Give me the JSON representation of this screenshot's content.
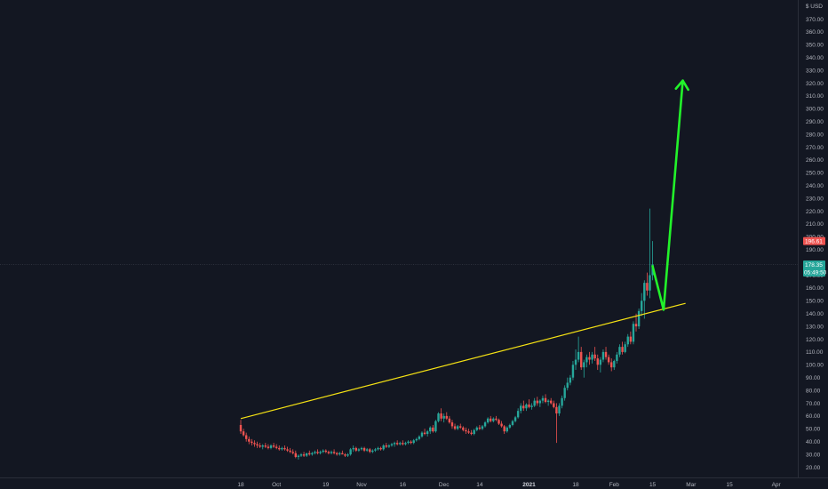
{
  "chart_data": {
    "type": "candlestick",
    "title": "",
    "unit_label": "$ USD",
    "ylim": [
      15,
      385
    ],
    "y_ticks": [
      20,
      30,
      40,
      50,
      60,
      70,
      80,
      90,
      100,
      110,
      120,
      130,
      140,
      150,
      160,
      170,
      180,
      190,
      200,
      210,
      220,
      230,
      240,
      250,
      260,
      270,
      280,
      290,
      300,
      310,
      320,
      330,
      340,
      350,
      360,
      370
    ],
    "y_tick_labels": [
      "20.00",
      "30.00",
      "40.00",
      "50.00",
      "60.00",
      "70.00",
      "80.00",
      "90.00",
      "100.00",
      "110.00",
      "120.00",
      "130.00",
      "140.00",
      "150.00",
      "160.00",
      "170.00",
      "180.00",
      "190.00",
      "200.00",
      "210.00",
      "220.00",
      "230.00",
      "240.00",
      "250.00",
      "260.00",
      "270.00",
      "280.00",
      "290.00",
      "300.00",
      "310.00",
      "320.00",
      "330.00",
      "340.00",
      "350.00",
      "360.00",
      "370.00"
    ],
    "x_start": "2020-09-18",
    "x_end": "2021-04-05",
    "x_ticks": [
      {
        "date": "2020-09-18",
        "label": "18",
        "bold": false
      },
      {
        "date": "2020-10-01",
        "label": "Oct",
        "bold": false
      },
      {
        "date": "2020-10-19",
        "label": "19",
        "bold": false
      },
      {
        "date": "2020-11-01",
        "label": "Nov",
        "bold": false
      },
      {
        "date": "2020-11-16",
        "label": "16",
        "bold": false
      },
      {
        "date": "2020-12-01",
        "label": "Dec",
        "bold": false
      },
      {
        "date": "2020-12-14",
        "label": "14",
        "bold": false
      },
      {
        "date": "2021-01-01",
        "label": "2021",
        "bold": true
      },
      {
        "date": "2021-01-18",
        "label": "18",
        "bold": false
      },
      {
        "date": "2021-02-01",
        "label": "Feb",
        "bold": false
      },
      {
        "date": "2021-02-15",
        "label": "15",
        "bold": false
      },
      {
        "date": "2021-03-01",
        "label": "Mar",
        "bold": false
      },
      {
        "date": "2021-03-15",
        "label": "15",
        "bold": false
      },
      {
        "date": "2021-04-01",
        "label": "Apr",
        "bold": false
      }
    ],
    "last_price": {
      "value": 178.35,
      "label": "178.35",
      "countdown": "05:49:50",
      "color": "#26a69a"
    },
    "high_marker": {
      "value": 196.61,
      "label": "196.61",
      "color": "#ef5350"
    },
    "annotations": [
      {
        "name": "trendline",
        "color": "#f5e214",
        "from": {
          "date": "2020-09-18",
          "value": 58
        },
        "to": {
          "date": "2021-02-27",
          "value": 148
        }
      },
      {
        "name": "projection-arrow",
        "color": "#22f22a",
        "points": [
          {
            "date": "2021-02-15",
            "value": 177
          },
          {
            "date": "2021-02-19",
            "value": 143
          },
          {
            "date": "2021-02-26",
            "value": 322
          }
        ]
      }
    ],
    "candle_colors": {
      "up": "#26a69a",
      "down": "#ef5350"
    },
    "grid": false,
    "legend": "none",
    "candles": [
      [
        "2020-09-18",
        53,
        57,
        46,
        48
      ],
      [
        "2020-09-19",
        48,
        50,
        44,
        45
      ],
      [
        "2020-09-20",
        45,
        47,
        40,
        42
      ],
      [
        "2020-09-21",
        42,
        44,
        38,
        40
      ],
      [
        "2020-09-22",
        40,
        42,
        37,
        39
      ],
      [
        "2020-09-23",
        39,
        41,
        36,
        38
      ],
      [
        "2020-09-24",
        38,
        40,
        35,
        37
      ],
      [
        "2020-09-25",
        37,
        39,
        35,
        36
      ],
      [
        "2020-09-26",
        36,
        38,
        34,
        37
      ],
      [
        "2020-09-27",
        37,
        39,
        35,
        36
      ],
      [
        "2020-09-28",
        36,
        38,
        34,
        35
      ],
      [
        "2020-09-29",
        35,
        38,
        34,
        37
      ],
      [
        "2020-09-30",
        37,
        39,
        35,
        36
      ],
      [
        "2020-10-01",
        36,
        38,
        34,
        35
      ],
      [
        "2020-10-02",
        35,
        37,
        33,
        34
      ],
      [
        "2020-10-03",
        34,
        36,
        33,
        35
      ],
      [
        "2020-10-04",
        35,
        37,
        33,
        34
      ],
      [
        "2020-10-05",
        34,
        36,
        32,
        33
      ],
      [
        "2020-10-06",
        33,
        35,
        31,
        32
      ],
      [
        "2020-10-07",
        32,
        34,
        30,
        31
      ],
      [
        "2020-10-08",
        31,
        33,
        27,
        28
      ],
      [
        "2020-10-09",
        28,
        30,
        26,
        29
      ],
      [
        "2020-10-10",
        29,
        31,
        28,
        30
      ],
      [
        "2020-10-11",
        30,
        32,
        28,
        29
      ],
      [
        "2020-10-12",
        29,
        31,
        28,
        31
      ],
      [
        "2020-10-13",
        31,
        33,
        29,
        30
      ],
      [
        "2020-10-14",
        30,
        32,
        29,
        31
      ],
      [
        "2020-10-15",
        31,
        33,
        30,
        32
      ],
      [
        "2020-10-16",
        32,
        34,
        30,
        31
      ],
      [
        "2020-10-17",
        31,
        33,
        30,
        32
      ],
      [
        "2020-10-18",
        32,
        34,
        31,
        33
      ],
      [
        "2020-10-19",
        33,
        34,
        31,
        32
      ],
      [
        "2020-10-20",
        32,
        33,
        30,
        31
      ],
      [
        "2020-10-21",
        31,
        33,
        30,
        32
      ],
      [
        "2020-10-22",
        32,
        34,
        30,
        31
      ],
      [
        "2020-10-23",
        31,
        32,
        29,
        30
      ],
      [
        "2020-10-24",
        30,
        32,
        29,
        31
      ],
      [
        "2020-10-25",
        31,
        33,
        30,
        30
      ],
      [
        "2020-10-26",
        30,
        31,
        28,
        29
      ],
      [
        "2020-10-27",
        29,
        31,
        28,
        30
      ],
      [
        "2020-10-28",
        30,
        35,
        29,
        34
      ],
      [
        "2020-10-29",
        34,
        37,
        32,
        35
      ],
      [
        "2020-10-30",
        35,
        36,
        32,
        33
      ],
      [
        "2020-10-31",
        33,
        35,
        32,
        34
      ],
      [
        "2020-11-01",
        34,
        36,
        33,
        35
      ],
      [
        "2020-11-02",
        35,
        36,
        32,
        33
      ],
      [
        "2020-11-03",
        33,
        35,
        32,
        34
      ],
      [
        "2020-11-04",
        34,
        35,
        31,
        32
      ],
      [
        "2020-11-05",
        32,
        34,
        31,
        33
      ],
      [
        "2020-11-06",
        33,
        35,
        32,
        34
      ],
      [
        "2020-11-07",
        34,
        36,
        33,
        35
      ],
      [
        "2020-11-08",
        35,
        36,
        33,
        34
      ],
      [
        "2020-11-09",
        34,
        38,
        33,
        37
      ],
      [
        "2020-11-10",
        37,
        39,
        35,
        36
      ],
      [
        "2020-11-11",
        36,
        38,
        35,
        37
      ],
      [
        "2020-11-12",
        37,
        39,
        36,
        38
      ],
      [
        "2020-11-13",
        38,
        40,
        36,
        39
      ],
      [
        "2020-11-14",
        39,
        41,
        37,
        38
      ],
      [
        "2020-11-15",
        38,
        40,
        37,
        39
      ],
      [
        "2020-11-16",
        39,
        41,
        37,
        38
      ],
      [
        "2020-11-17",
        38,
        40,
        37,
        39
      ],
      [
        "2020-11-18",
        39,
        41,
        38,
        40
      ],
      [
        "2020-11-19",
        40,
        41,
        38,
        39
      ],
      [
        "2020-11-20",
        39,
        42,
        38,
        41
      ],
      [
        "2020-11-21",
        41,
        43,
        40,
        42
      ],
      [
        "2020-11-22",
        42,
        45,
        41,
        44
      ],
      [
        "2020-11-23",
        44,
        48,
        43,
        47
      ],
      [
        "2020-11-24",
        47,
        50,
        45,
        46
      ],
      [
        "2020-11-25",
        46,
        49,
        44,
        48
      ],
      [
        "2020-11-26",
        48,
        52,
        46,
        51
      ],
      [
        "2020-11-27",
        51,
        53,
        47,
        48
      ],
      [
        "2020-11-28",
        48,
        57,
        47,
        56
      ],
      [
        "2020-11-29",
        56,
        63,
        55,
        62
      ],
      [
        "2020-11-30",
        62,
        66,
        56,
        58
      ],
      [
        "2020-12-01",
        58,
        62,
        55,
        60
      ],
      [
        "2020-12-02",
        60,
        63,
        57,
        58
      ],
      [
        "2020-12-03",
        58,
        60,
        54,
        55
      ],
      [
        "2020-12-04",
        55,
        57,
        50,
        52
      ],
      [
        "2020-12-05",
        52,
        54,
        49,
        50
      ],
      [
        "2020-12-06",
        50,
        53,
        49,
        52
      ],
      [
        "2020-12-07",
        52,
        54,
        50,
        51
      ],
      [
        "2020-12-08",
        51,
        52,
        48,
        49
      ],
      [
        "2020-12-09",
        49,
        51,
        46,
        48
      ],
      [
        "2020-12-10",
        48,
        50,
        46,
        47
      ],
      [
        "2020-12-11",
        47,
        49,
        45,
        46
      ],
      [
        "2020-12-12",
        46,
        50,
        45,
        49
      ],
      [
        "2020-12-13",
        49,
        52,
        48,
        51
      ],
      [
        "2020-12-14",
        51,
        53,
        49,
        50
      ],
      [
        "2020-12-15",
        50,
        53,
        49,
        52
      ],
      [
        "2020-12-16",
        52,
        56,
        51,
        55
      ],
      [
        "2020-12-17",
        55,
        59,
        54,
        58
      ],
      [
        "2020-12-18",
        58,
        60,
        55,
        56
      ],
      [
        "2020-12-19",
        56,
        59,
        55,
        58
      ],
      [
        "2020-12-20",
        58,
        60,
        56,
        57
      ],
      [
        "2020-12-21",
        57,
        58,
        53,
        54
      ],
      [
        "2020-12-22",
        54,
        56,
        51,
        52
      ],
      [
        "2020-12-23",
        52,
        53,
        46,
        48
      ],
      [
        "2020-12-24",
        48,
        52,
        47,
        51
      ],
      [
        "2020-12-25",
        51,
        54,
        50,
        53
      ],
      [
        "2020-12-26",
        53,
        57,
        52,
        56
      ],
      [
        "2020-12-27",
        56,
        60,
        55,
        59
      ],
      [
        "2020-12-28",
        59,
        66,
        58,
        64
      ],
      [
        "2020-12-29",
        64,
        70,
        62,
        68
      ],
      [
        "2020-12-30",
        68,
        72,
        64,
        66
      ],
      [
        "2020-12-31",
        66,
        70,
        64,
        69
      ],
      [
        "2021-01-01",
        69,
        73,
        66,
        67
      ],
      [
        "2021-01-02",
        67,
        70,
        65,
        68
      ],
      [
        "2021-01-03",
        68,
        74,
        67,
        72
      ],
      [
        "2021-01-04",
        72,
        75,
        68,
        70
      ],
      [
        "2021-01-05",
        70,
        73,
        67,
        72
      ],
      [
        "2021-01-06",
        72,
        76,
        70,
        74
      ],
      [
        "2021-01-07",
        74,
        77,
        70,
        71
      ],
      [
        "2021-01-08",
        71,
        73,
        68,
        72
      ],
      [
        "2021-01-09",
        72,
        74,
        69,
        70
      ],
      [
        "2021-01-10",
        70,
        72,
        66,
        67
      ],
      [
        "2021-01-11",
        67,
        70,
        39,
        62
      ],
      [
        "2021-01-12",
        62,
        70,
        60,
        68
      ],
      [
        "2021-01-13",
        68,
        76,
        66,
        74
      ],
      [
        "2021-01-14",
        74,
        84,
        72,
        82
      ],
      [
        "2021-01-15",
        82,
        90,
        80,
        86
      ],
      [
        "2021-01-16",
        86,
        92,
        84,
        90
      ],
      [
        "2021-01-17",
        90,
        103,
        88,
        100
      ],
      [
        "2021-01-18",
        100,
        112,
        96,
        104
      ],
      [
        "2021-01-19",
        104,
        122,
        102,
        110
      ],
      [
        "2021-01-20",
        110,
        114,
        96,
        98
      ],
      [
        "2021-01-21",
        98,
        104,
        90,
        102
      ],
      [
        "2021-01-22",
        102,
        108,
        98,
        106
      ],
      [
        "2021-01-23",
        106,
        110,
        100,
        104
      ],
      [
        "2021-01-24",
        104,
        110,
        101,
        108
      ],
      [
        "2021-01-25",
        108,
        114,
        103,
        105
      ],
      [
        "2021-01-26",
        105,
        108,
        96,
        100
      ],
      [
        "2021-01-27",
        100,
        106,
        94,
        104
      ],
      [
        "2021-01-28",
        104,
        112,
        102,
        110
      ],
      [
        "2021-01-29",
        110,
        114,
        104,
        106
      ],
      [
        "2021-01-30",
        106,
        108,
        100,
        102
      ],
      [
        "2021-01-31",
        102,
        105,
        95,
        98
      ],
      [
        "2021-02-01",
        98,
        104,
        96,
        103
      ],
      [
        "2021-02-02",
        103,
        110,
        101,
        108
      ],
      [
        "2021-02-03",
        108,
        116,
        106,
        114
      ],
      [
        "2021-02-04",
        114,
        118,
        108,
        110
      ],
      [
        "2021-02-05",
        110,
        118,
        109,
        116
      ],
      [
        "2021-02-06",
        116,
        124,
        114,
        122
      ],
      [
        "2021-02-07",
        122,
        126,
        116,
        118
      ],
      [
        "2021-02-08",
        118,
        134,
        116,
        132
      ],
      [
        "2021-02-09",
        132,
        140,
        126,
        130
      ],
      [
        "2021-02-10",
        130,
        144,
        128,
        142
      ],
      [
        "2021-02-11",
        142,
        156,
        138,
        150
      ],
      [
        "2021-02-12",
        150,
        166,
        136,
        164
      ],
      [
        "2021-02-13",
        164,
        172,
        154,
        158
      ],
      [
        "2021-02-14",
        158,
        222,
        152,
        170
      ],
      [
        "2021-02-15",
        170,
        196.61,
        166,
        178.35
      ]
    ]
  }
}
